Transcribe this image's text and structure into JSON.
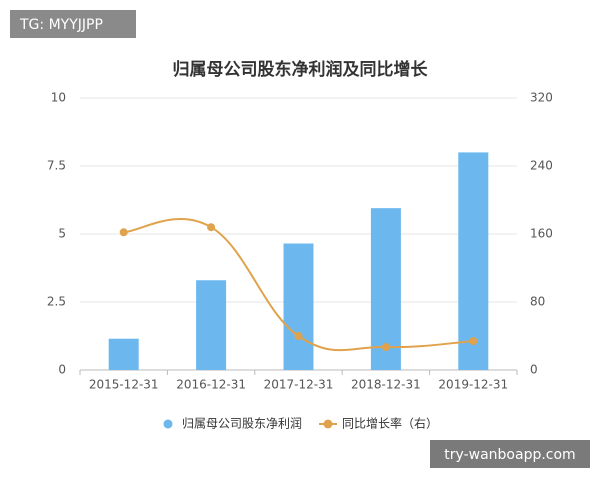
{
  "chart_data": {
    "type": "bar-line",
    "title": "归属母公司股东净利润及同比增长",
    "categories": [
      "2015-12-31",
      "2016-12-31",
      "2017-12-31",
      "2018-12-31",
      "2019-12-31"
    ],
    "series": [
      {
        "name": "归属母公司股东净利润",
        "type": "bar",
        "color": "#6cb8ee",
        "values": [
          1.15,
          3.3,
          4.65,
          5.95,
          8.0
        ]
      },
      {
        "name": "同比增长率（右）",
        "type": "line",
        "axis": "y2",
        "color": "#e0a24c",
        "values": [
          162,
          168,
          40,
          27,
          34
        ]
      }
    ],
    "ylim": [
      0,
      10
    ],
    "yticks": [
      0,
      2.5,
      5,
      7.5,
      10
    ],
    "y2lim": [
      0,
      320
    ],
    "y2ticks": [
      0,
      80,
      160,
      240,
      320
    ],
    "grid": true,
    "legend": "bottom"
  },
  "watermarks": [
    "TG: MYYJJPP",
    "try-wanboapp.com"
  ]
}
